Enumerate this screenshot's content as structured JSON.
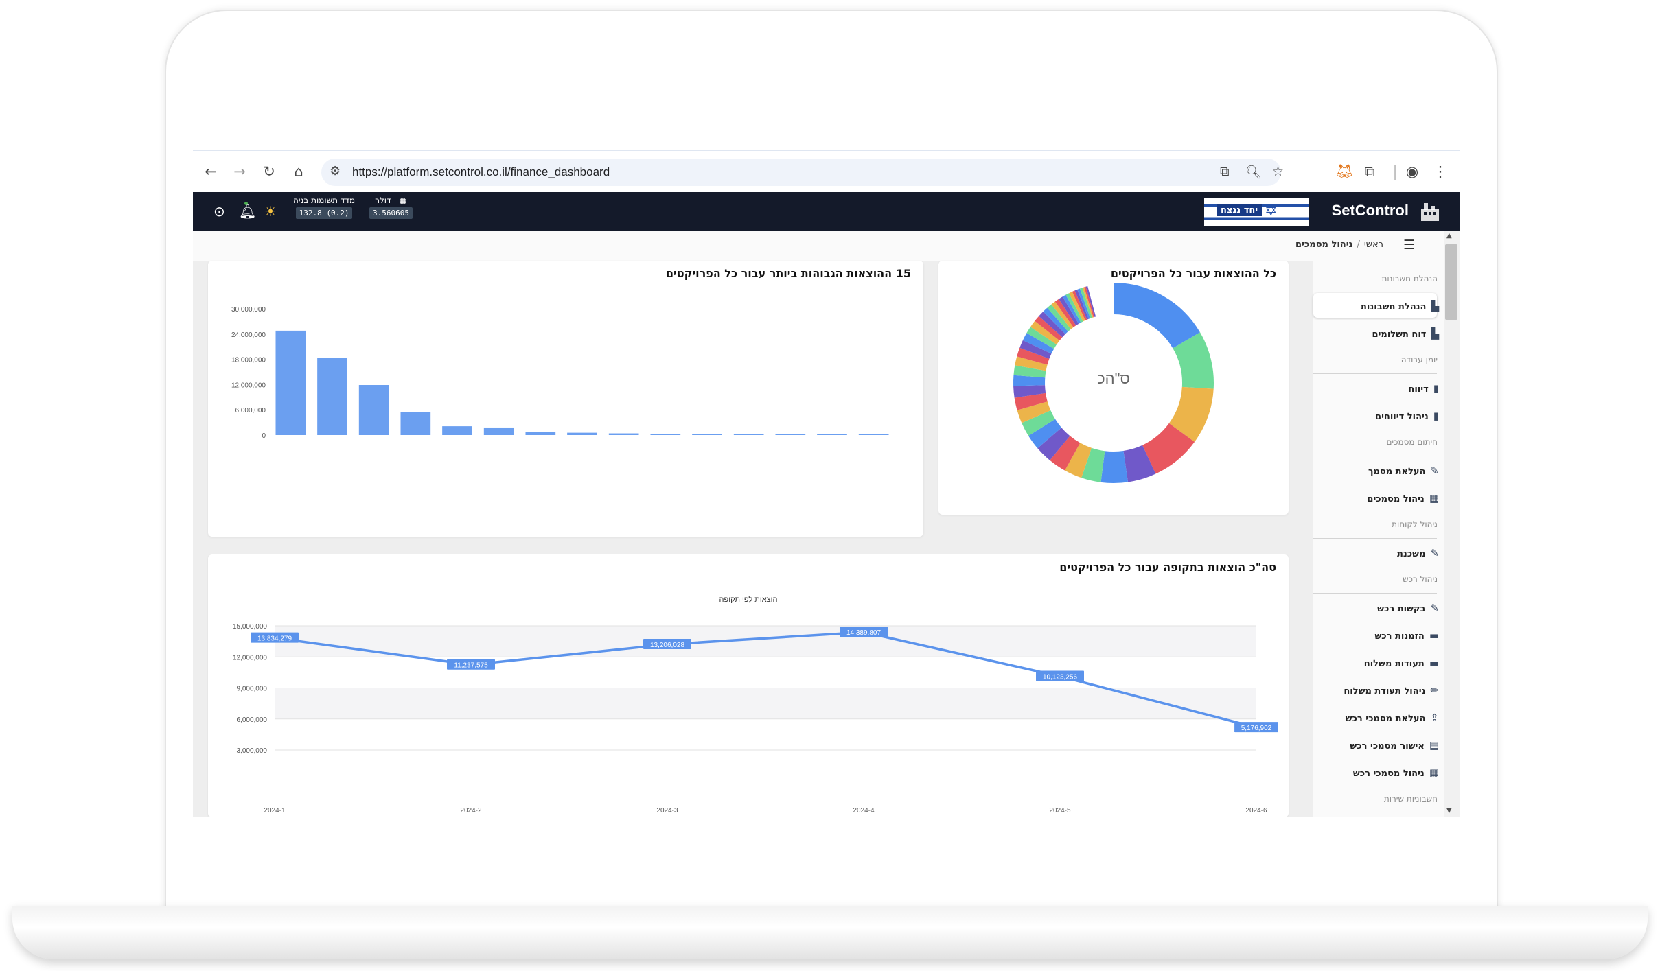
{
  "browser": {
    "url": "https://platform.setcontrol.co.il/finance_dashboard"
  },
  "header": {
    "brand": "SetControl",
    "banner_text": "יחד ננצח",
    "construction_index": {
      "label": "מדד תשומות בניה",
      "value": "132.8 (0.2)"
    },
    "dollar": {
      "label": "דולר",
      "value": "3.560605"
    }
  },
  "breadcrumb": {
    "home": "ראשי",
    "separator": "/",
    "current": "ניהול מסמכים"
  },
  "sidebar": {
    "sections": [
      {
        "title": "הנהלת חשבונות"
      },
      {
        "title": "יומן עבודה"
      },
      {
        "title": "חיתום מסמכים"
      },
      {
        "title": "ניהול לקוחות"
      },
      {
        "title": "ניהול רכש"
      },
      {
        "title": "חשבוניות שירות"
      }
    ],
    "items": [
      {
        "label": "הנהלת חשבונות",
        "icon": "chart-icon",
        "active": true
      },
      {
        "label": "דוח תשלומים",
        "icon": "chart-icon"
      },
      {
        "label": "דיווח",
        "icon": "clipboard-icon"
      },
      {
        "label": "ניהול דיווחים",
        "icon": "clipboard-icon"
      },
      {
        "label": "העלאת מסמך",
        "icon": "edit-doc-icon"
      },
      {
        "label": "ניהול מסמכים",
        "icon": "table-icon"
      },
      {
        "label": "משכנת",
        "icon": "edit-doc-icon"
      },
      {
        "label": "בקשות רכש",
        "icon": "edit-icon"
      },
      {
        "label": "הזמנות רכש",
        "icon": "box-icon"
      },
      {
        "label": "תעודות משלוח",
        "icon": "box-icon"
      },
      {
        "label": "ניהול תעודת משלוח",
        "icon": "pencil-icon"
      },
      {
        "label": "העלאת מסמכי רכש",
        "icon": "upload-doc-icon"
      },
      {
        "label": "אישור מסמכי רכש",
        "icon": "approve-doc-icon"
      },
      {
        "label": "ניהול מסמכי רכש",
        "icon": "table-icon"
      }
    ]
  },
  "cards": {
    "donut_title": "כל ההוצאות עבור כל הפרויקטים",
    "donut_center": "ס\"הכ",
    "bar_title": "15 ההוצאות הגבוהות ביותר עבור כל הפרויקטים",
    "line_title": "סה\"כ הוצאות בתקופה עבור כל הפרויקטים"
  },
  "chart_data": [
    {
      "type": "pie",
      "title": "כל ההוצאות עבור כל הפרויקטים",
      "center_label": "ס\"הכ",
      "slices": [
        {
          "value": 11.5,
          "color": "#4f8ff0"
        },
        {
          "value": 6.5,
          "color": "#6edb98"
        },
        {
          "value": 6.3,
          "color": "#ecb44a"
        },
        {
          "value": 5.6,
          "color": "#e8575f"
        },
        {
          "value": 3.2,
          "color": "#7059c9"
        },
        {
          "value": 3.0,
          "color": "#4f8ff0"
        },
        {
          "value": 2.2,
          "color": "#6edb98"
        },
        {
          "value": 2.0,
          "color": "#ecb44a"
        },
        {
          "value": 2.0,
          "color": "#e8575f"
        },
        {
          "value": 1.9,
          "color": "#7059c9"
        },
        {
          "value": 1.7,
          "color": "#4f8ff0"
        },
        {
          "value": 1.6,
          "color": "#6edb98"
        },
        {
          "value": 1.5,
          "color": "#ecb44a"
        },
        {
          "value": 1.4,
          "color": "#e8575f"
        },
        {
          "value": 1.3,
          "color": "#7059c9"
        },
        {
          "value": 1.2,
          "color": "#4f8ff0"
        },
        {
          "value": 1.1,
          "color": "#6edb98"
        },
        {
          "value": 1.0,
          "color": "#ecb44a"
        },
        {
          "value": 1.0,
          "color": "#e8575f"
        },
        {
          "value": 0.9,
          "color": "#7059c9"
        },
        {
          "value": 0.9,
          "color": "#4f8ff0"
        },
        {
          "value": 0.8,
          "color": "#6edb98"
        },
        {
          "value": 0.8,
          "color": "#ecb44a"
        },
        {
          "value": 0.7,
          "color": "#e8575f"
        },
        {
          "value": 0.7,
          "color": "#7059c9"
        },
        {
          "value": 0.6,
          "color": "#4f8ff0"
        },
        {
          "value": 0.6,
          "color": "#6edb98"
        },
        {
          "value": 0.5,
          "color": "#ecb44a"
        },
        {
          "value": 0.5,
          "color": "#e8575f"
        },
        {
          "value": 0.5,
          "color": "#7059c9"
        },
        {
          "value": 0.4,
          "color": "#4f8ff0"
        },
        {
          "value": 0.4,
          "color": "#6edb98"
        },
        {
          "value": 0.4,
          "color": "#ecb44a"
        },
        {
          "value": 0.3,
          "color": "#e8575f"
        },
        {
          "value": 0.3,
          "color": "#7059c9"
        },
        {
          "value": 0.3,
          "color": "#4f8ff0"
        },
        {
          "value": 0.3,
          "color": "#6edb98"
        },
        {
          "value": 0.2,
          "color": "#ecb44a"
        },
        {
          "value": 0.2,
          "color": "#e8575f"
        },
        {
          "value": 0.2,
          "color": "#7059c9"
        }
      ]
    },
    {
      "type": "bar",
      "title": "15 ההוצאות הגבוהות ביותר עבור כל הפרויקטים",
      "values": [
        24800000,
        18300000,
        11900000,
        5400000,
        2100000,
        1800000,
        800000,
        550000,
        400000,
        300000,
        250000,
        200000,
        150000,
        120000,
        100000
      ],
      "yticks": [
        "30,000,000",
        "24,000,000",
        "18,000,000",
        "12,000,000",
        "6,000,000",
        "0"
      ],
      "ylim": [
        0,
        30000000
      ],
      "color": "#6b9ff0"
    },
    {
      "type": "line",
      "title": "סה\"כ הוצאות בתקופה עבור כל הפרויקטים",
      "subtitle": "הוצאות לפי תקופה",
      "categories": [
        "2024-1",
        "2024-2",
        "2024-3",
        "2024-4",
        "2024-5",
        "2024-6"
      ],
      "values": [
        13834279,
        11237575,
        13206028,
        14389807,
        10123256,
        5176902
      ],
      "value_labels": [
        "13,834,279",
        "11,237,575",
        "13,206,028",
        "14,389,807",
        "10,123,256",
        "5,176,902"
      ],
      "yticks": [
        "15,000,000",
        "12,000,000",
        "9,000,000",
        "6,000,000",
        "3,000,000"
      ],
      "ylim": [
        3000000,
        15000000
      ],
      "color": "#5b93ec"
    }
  ]
}
